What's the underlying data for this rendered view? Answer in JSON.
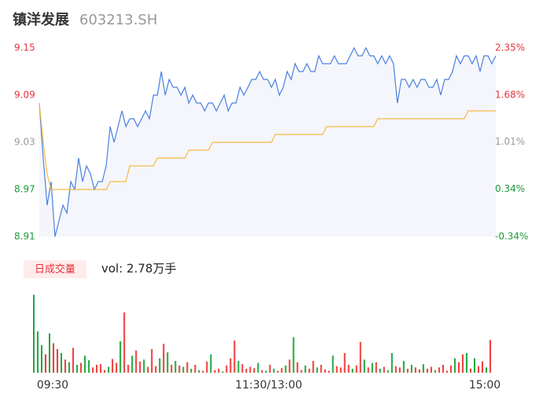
{
  "header": {
    "title": "镇洋发展",
    "code": "603213.SH"
  },
  "chart_data": [
    {
      "type": "line",
      "ylim": [
        8.91,
        9.15
      ],
      "yticks": [
        9.15,
        9.09,
        9.03,
        8.97,
        8.91
      ],
      "tick_colors": [
        "#e8323c",
        "#e8323c",
        "#999999",
        "#1a9a3a",
        "#1a9a3a"
      ],
      "y2lim": [
        -0.34,
        2.35
      ],
      "y2ticks": [
        {
          "value": 2.35,
          "label": "2.35%"
        },
        {
          "value": 1.68,
          "label": "1.68%"
        },
        {
          "value": 1.01,
          "label": "1.01%"
        },
        {
          "value": 0.34,
          "label": "0.34%"
        },
        {
          "value": -0.34,
          "label": "-0.34%"
        }
      ],
      "xlim": [
        0,
        240
      ],
      "series": [
        {
          "color": "#4a7fe0",
          "values": [
            9.08,
            9.01,
            8.95,
            8.98,
            8.91,
            8.93,
            8.95,
            8.94,
            8.98,
            8.97,
            9.01,
            8.98,
            9.0,
            8.99,
            8.97,
            8.98,
            8.98,
            9.0,
            9.05,
            9.03,
            9.05,
            9.07,
            9.05,
            9.06,
            9.06,
            9.05,
            9.06,
            9.07,
            9.06,
            9.09,
            9.09,
            9.12,
            9.09,
            9.11,
            9.1,
            9.1,
            9.09,
            9.1,
            9.08,
            9.09,
            9.08,
            9.08,
            9.07,
            9.08,
            9.08,
            9.07,
            9.08,
            9.09,
            9.07,
            9.08,
            9.08,
            9.1,
            9.09,
            9.1,
            9.11,
            9.11,
            9.12,
            9.11,
            9.11,
            9.1,
            9.11,
            9.09,
            9.1,
            9.12,
            9.11,
            9.13,
            9.12,
            9.12,
            9.13,
            9.12,
            9.12,
            9.14,
            9.13,
            9.13,
            9.13,
            9.14,
            9.13,
            9.13,
            9.13,
            9.14,
            9.15,
            9.14,
            9.14,
            9.15,
            9.14,
            9.14,
            9.13,
            9.14,
            9.13,
            9.14,
            9.13,
            9.08,
            9.11,
            9.11,
            9.1,
            9.11,
            9.1,
            9.11,
            9.11,
            9.1,
            9.1,
            9.11,
            9.09,
            9.11,
            9.11,
            9.12,
            9.14,
            9.13,
            9.14,
            9.14,
            9.13,
            9.14,
            9.12,
            9.14,
            9.14,
            9.13,
            9.14
          ]
        },
        {
          "color": "#f5b942",
          "values": [
            9.08,
            9.03,
            8.99,
            8.97,
            8.97,
            8.97,
            8.97,
            8.97,
            8.97,
            8.97,
            8.97,
            8.97,
            8.97,
            8.97,
            8.97,
            8.97,
            8.97,
            8.97,
            8.98,
            8.98,
            8.98,
            8.98,
            8.98,
            9.0,
            9.0,
            9.0,
            9.0,
            9.0,
            9.0,
            9.0,
            9.01,
            9.01,
            9.01,
            9.01,
            9.01,
            9.01,
            9.01,
            9.01,
            9.02,
            9.02,
            9.02,
            9.02,
            9.02,
            9.02,
            9.03,
            9.03,
            9.03,
            9.03,
            9.03,
            9.03,
            9.03,
            9.03,
            9.03,
            9.03,
            9.03,
            9.03,
            9.03,
            9.03,
            9.03,
            9.03,
            9.04,
            9.04,
            9.04,
            9.04,
            9.04,
            9.04,
            9.04,
            9.04,
            9.04,
            9.04,
            9.04,
            9.04,
            9.04,
            9.05,
            9.05,
            9.05,
            9.05,
            9.05,
            9.05,
            9.05,
            9.05,
            9.05,
            9.05,
            9.05,
            9.05,
            9.05,
            9.06,
            9.06,
            9.06,
            9.06,
            9.06,
            9.06,
            9.06,
            9.06,
            9.06,
            9.06,
            9.06,
            9.06,
            9.06,
            9.06,
            9.06,
            9.06,
            9.06,
            9.06,
            9.06,
            9.06,
            9.06,
            9.06,
            9.06,
            9.07,
            9.07,
            9.07,
            9.07,
            9.07,
            9.07,
            9.07,
            9.07
          ]
        }
      ]
    },
    {
      "type": "bar",
      "label": "日成交量",
      "summary": "vol: 2.78万手",
      "up_color": "#ef3b3b",
      "down_color": "#1ea83c",
      "ylim": [
        0,
        1200
      ],
      "xlim": [
        0,
        240
      ],
      "xticks": [
        {
          "value": 0,
          "label": "09:30"
        },
        {
          "value": 120,
          "label": "11:30/13:00"
        },
        {
          "value": 240,
          "label": "15:00"
        }
      ],
      "values": [
        1190,
        630,
        420,
        280,
        600,
        450,
        360,
        300,
        200,
        160,
        380,
        120,
        150,
        260,
        190,
        80,
        120,
        130,
        40,
        90,
        210,
        150,
        480,
        920,
        120,
        260,
        340,
        170,
        200,
        90,
        360,
        100,
        220,
        440,
        310,
        120,
        180,
        110,
        90,
        160,
        60,
        120,
        40,
        30,
        170,
        280,
        40,
        60,
        20,
        110,
        220,
        490,
        180,
        130,
        60,
        90,
        70,
        150,
        40,
        30,
        120,
        60,
        30,
        70,
        110,
        200,
        540,
        160,
        40,
        110,
        60,
        180,
        80,
        120,
        50,
        30,
        260,
        100,
        80,
        300,
        120,
        60,
        110,
        470,
        200,
        80,
        150,
        160,
        60,
        90,
        40,
        300,
        100,
        80,
        180,
        60,
        120,
        80,
        50,
        130,
        60,
        90,
        40,
        80,
        120,
        30,
        110,
        220,
        160,
        280,
        300,
        60,
        220,
        100,
        170,
        80,
        500
      ]
    }
  ]
}
